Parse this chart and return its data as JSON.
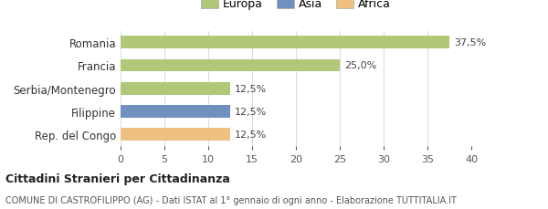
{
  "categories": [
    "Rep. del Congo",
    "Filippine",
    "Serbia/Montenegro",
    "Francia",
    "Romania"
  ],
  "values": [
    12.5,
    12.5,
    12.5,
    25.0,
    37.5
  ],
  "colors": [
    "#f0c080",
    "#7090c0",
    "#b0c878",
    "#b0c878",
    "#b0c878"
  ],
  "bar_labels": [
    "12,5%",
    "12,5%",
    "12,5%",
    "25,0%",
    "37,5%"
  ],
  "legend_labels": [
    "Europa",
    "Asia",
    "Africa"
  ],
  "legend_colors": [
    "#b0c878",
    "#7090c0",
    "#f0c080"
  ],
  "xlim": [
    0,
    40
  ],
  "xticks": [
    0,
    5,
    10,
    15,
    20,
    25,
    30,
    35,
    40
  ],
  "title": "Cittadini Stranieri per Cittadinanza",
  "subtitle": "COMUNE DI CASTROFILIPPO (AG) - Dati ISTAT al 1° gennaio di ogni anno - Elaborazione TUTTITALIA.IT",
  "background_color": "#ffffff",
  "grid_color": "#dddddd"
}
